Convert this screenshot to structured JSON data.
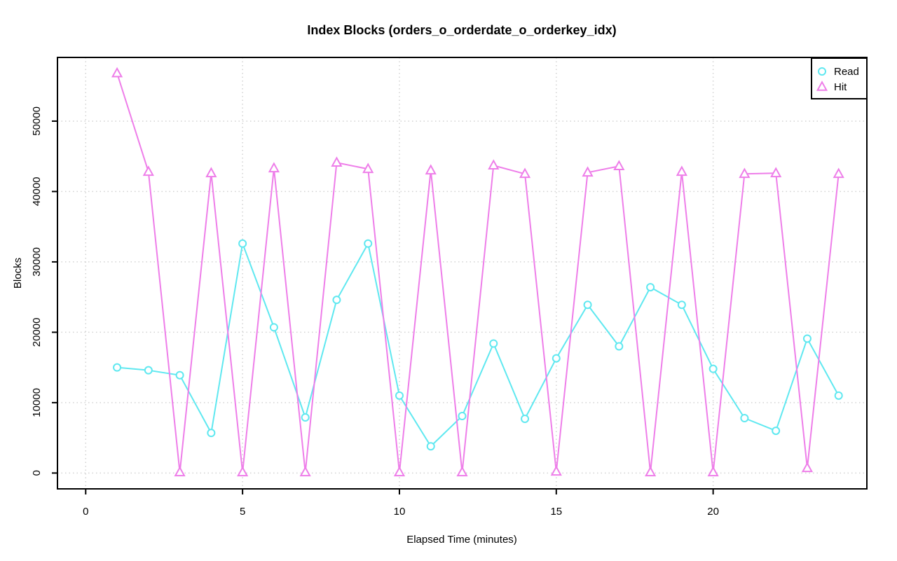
{
  "chart_data": {
    "type": "line",
    "title": "Index Blocks (orders_o_orderdate_o_orderkey_idx)",
    "xlabel": "Elapsed Time (minutes)",
    "ylabel": "Blocks",
    "x": [
      1,
      2,
      3,
      4,
      5,
      6,
      7,
      8,
      9,
      10,
      11,
      12,
      13,
      14,
      15,
      16,
      17,
      18,
      19,
      20,
      21,
      22,
      23,
      24
    ],
    "series": [
      {
        "name": "Read",
        "marker": "circle",
        "color": "#5fe8f0",
        "values": [
          15000,
          14600,
          13900,
          5700,
          32600,
          20700,
          7900,
          24600,
          32600,
          11000,
          3800,
          8100,
          18400,
          7700,
          16300,
          23900,
          18000,
          26400,
          23900,
          14800,
          7800,
          6000,
          19100,
          11000
        ]
      },
      {
        "name": "Hit",
        "marker": "triangle",
        "color": "#ee7ee9",
        "values": [
          56800,
          42800,
          100,
          42600,
          100,
          43300,
          100,
          44100,
          43200,
          100,
          43000,
          100,
          43700,
          42500,
          200,
          42700,
          43600,
          100,
          42800,
          100,
          42500,
          42600,
          700,
          42500
        ]
      }
    ],
    "xlim": [
      -0.9,
      24.9
    ],
    "ylim": [
      -2250,
      59050
    ],
    "xticks": [
      0,
      5,
      10,
      15,
      20
    ],
    "yticks": [
      0,
      10000,
      20000,
      30000,
      40000,
      50000
    ],
    "ytick_labels": [
      "0",
      "10000",
      "20000",
      "30000",
      "40000",
      "50000"
    ],
    "xtick_labels": [
      "0",
      "5",
      "10",
      "15",
      "20"
    ],
    "grid": true,
    "grid_color": "#d2d2d2",
    "axis_color": "#000000",
    "legend_position": "top-right"
  }
}
